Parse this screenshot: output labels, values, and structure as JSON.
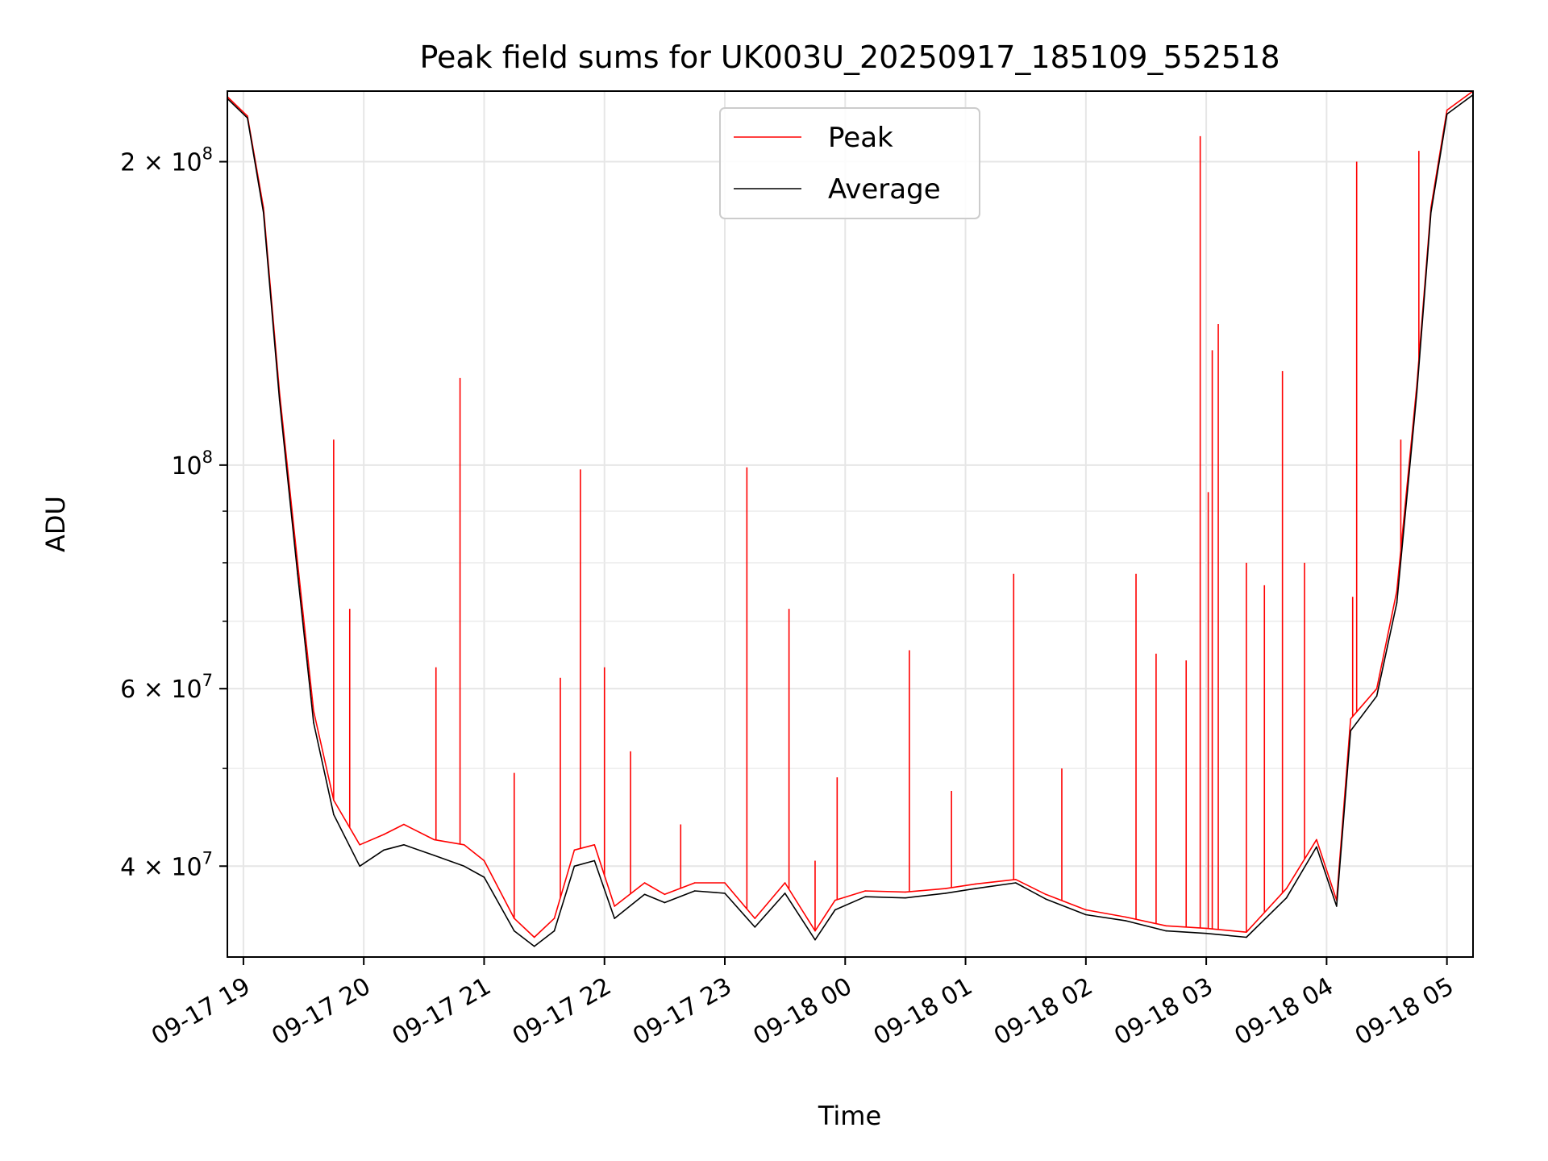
{
  "chart_data": {
    "type": "line",
    "title": "Peak field sums for UK003U_20250917_185109_552518",
    "xlabel": "Time",
    "ylabel": "ADU",
    "y_scale": "log",
    "ylim": [
      32500000,
      235000000
    ],
    "xlim": [
      "09-17 18:52",
      "09-18 05:13"
    ],
    "grid": true,
    "legend_position": "top-center",
    "x_ticks": [
      {
        "t": "09-17 19:00",
        "label": "09-17 19"
      },
      {
        "t": "09-17 20:00",
        "label": "09-17 20"
      },
      {
        "t": "09-17 21:00",
        "label": "09-17 21"
      },
      {
        "t": "09-17 22:00",
        "label": "09-17 22"
      },
      {
        "t": "09-17 23:00",
        "label": "09-17 23"
      },
      {
        "t": "09-18 00:00",
        "label": "09-18 00"
      },
      {
        "t": "09-18 01:00",
        "label": "09-18 01"
      },
      {
        "t": "09-18 02:00",
        "label": "09-18 02"
      },
      {
        "t": "09-18 03:00",
        "label": "09-18 03"
      },
      {
        "t": "09-18 04:00",
        "label": "09-18 04"
      },
      {
        "t": "09-18 05:00",
        "label": "09-18 05"
      }
    ],
    "y_ticks": [
      {
        "value": 40000000,
        "base": "4",
        "exp": "7"
      },
      {
        "value": 60000000,
        "base": "6",
        "exp": "7"
      },
      {
        "value": 100000000,
        "base": "",
        "exp": "8"
      },
      {
        "value": 200000000,
        "base": "2",
        "exp": "8"
      }
    ],
    "y_minor_ticks": [
      50000000,
      70000000,
      80000000,
      90000000
    ],
    "series": [
      {
        "name": "Peak",
        "color": "#ff0000",
        "points": [
          [
            "09-17 18:52",
            232000000
          ],
          [
            "09-17 19:02",
            222000000
          ],
          [
            "09-17 19:10",
            180000000
          ],
          [
            "09-17 19:18",
            118000000
          ],
          [
            "09-17 19:27",
            80000000
          ],
          [
            "09-17 19:35",
            57000000
          ],
          [
            "09-17 19:45",
            46500000
          ],
          [
            "09-17 19:58",
            42000000
          ],
          [
            "09-17 20:10",
            43000000
          ],
          [
            "09-17 20:20",
            44000000
          ],
          [
            "09-17 20:35",
            42500000
          ],
          [
            "09-17 20:50",
            42000000
          ],
          [
            "09-17 21:00",
            40500000
          ],
          [
            "09-17 21:15",
            35500000
          ],
          [
            "09-17 21:25",
            34000000
          ],
          [
            "09-17 21:35",
            35500000
          ],
          [
            "09-17 21:45",
            41500000
          ],
          [
            "09-17 21:55",
            42000000
          ],
          [
            "09-17 22:05",
            36500000
          ],
          [
            "09-17 22:20",
            38500000
          ],
          [
            "09-17 22:30",
            37500000
          ],
          [
            "09-17 22:45",
            38500000
          ],
          [
            "09-17 23:00",
            38500000
          ],
          [
            "09-17 23:15",
            35500000
          ],
          [
            "09-17 23:30",
            38500000
          ],
          [
            "09-17 23:45",
            34500000
          ],
          [
            "09-17 23:55",
            37000000
          ],
          [
            "09-18 00:10",
            37800000
          ],
          [
            "09-18 00:30",
            37700000
          ],
          [
            "09-18 00:50",
            38000000
          ],
          [
            "09-18 01:05",
            38400000
          ],
          [
            "09-18 01:25",
            38800000
          ],
          [
            "09-18 01:40",
            37500000
          ],
          [
            "09-18 02:00",
            36200000
          ],
          [
            "09-18 02:20",
            35600000
          ],
          [
            "09-18 02:40",
            34900000
          ],
          [
            "09-18 03:00",
            34700000
          ],
          [
            "09-18 03:20",
            34400000
          ],
          [
            "09-18 03:40",
            38000000
          ],
          [
            "09-18 03:55",
            42500000
          ],
          [
            "09-18 04:05",
            37000000
          ],
          [
            "09-18 04:12",
            56000000
          ],
          [
            "09-18 04:25",
            60000000
          ],
          [
            "09-18 04:35",
            75000000
          ],
          [
            "09-18 04:45",
            120000000
          ],
          [
            "09-18 04:52",
            180000000
          ],
          [
            "09-18 05:00",
            225000000
          ],
          [
            "09-18 05:13",
            235000000
          ]
        ],
        "spikes": [
          [
            "09-17 19:45",
            106000000
          ],
          [
            "09-17 19:53",
            72000000
          ],
          [
            "09-17 20:36",
            63000000
          ],
          [
            "09-17 20:48",
            122000000
          ],
          [
            "09-17 21:15",
            49500000
          ],
          [
            "09-17 21:38",
            61500000
          ],
          [
            "09-17 21:48",
            99000000
          ],
          [
            "09-17 22:00",
            63000000
          ],
          [
            "09-17 22:13",
            52000000
          ],
          [
            "09-17 22:38",
            44000000
          ],
          [
            "09-17 23:11",
            99500000
          ],
          [
            "09-17 23:32",
            72000000
          ],
          [
            "09-17 23:45",
            40500000
          ],
          [
            "09-17 23:56",
            49000000
          ],
          [
            "09-18 00:32",
            65500000
          ],
          [
            "09-18 00:53",
            47500000
          ],
          [
            "09-18 01:24",
            78000000
          ],
          [
            "09-18 01:48",
            50000000
          ],
          [
            "09-18 02:25",
            78000000
          ],
          [
            "09-18 02:35",
            65000000
          ],
          [
            "09-18 02:50",
            64000000
          ],
          [
            "09-18 02:57",
            212000000
          ],
          [
            "09-18 03:01",
            94000000
          ],
          [
            "09-18 03:03",
            130000000
          ],
          [
            "09-18 03:06",
            138000000
          ],
          [
            "09-18 03:20",
            80000000
          ],
          [
            "09-18 03:29",
            76000000
          ],
          [
            "09-18 03:38",
            124000000
          ],
          [
            "09-18 03:49",
            80000000
          ],
          [
            "09-18 04:13",
            74000000
          ],
          [
            "09-18 04:15",
            200000000
          ],
          [
            "09-18 04:37",
            106000000
          ],
          [
            "09-18 04:46",
            205000000
          ]
        ]
      },
      {
        "name": "Average",
        "color": "#000000",
        "points": [
          [
            "09-17 18:52",
            231000000
          ],
          [
            "09-17 19:02",
            221000000
          ],
          [
            "09-17 19:10",
            178000000
          ],
          [
            "09-17 19:18",
            116000000
          ],
          [
            "09-17 19:27",
            78000000
          ],
          [
            "09-17 19:35",
            55500000
          ],
          [
            "09-17 19:45",
            45000000
          ],
          [
            "09-17 19:58",
            40000000
          ],
          [
            "09-17 20:10",
            41500000
          ],
          [
            "09-17 20:20",
            42000000
          ],
          [
            "09-17 20:35",
            41000000
          ],
          [
            "09-17 20:50",
            40000000
          ],
          [
            "09-17 21:00",
            39000000
          ],
          [
            "09-17 21:15",
            34500000
          ],
          [
            "09-17 21:25",
            33300000
          ],
          [
            "09-17 21:35",
            34500000
          ],
          [
            "09-17 21:45",
            40000000
          ],
          [
            "09-17 21:55",
            40500000
          ],
          [
            "09-17 22:05",
            35500000
          ],
          [
            "09-17 22:20",
            37500000
          ],
          [
            "09-17 22:30",
            36800000
          ],
          [
            "09-17 22:45",
            37800000
          ],
          [
            "09-17 23:00",
            37600000
          ],
          [
            "09-17 23:15",
            34800000
          ],
          [
            "09-17 23:30",
            37600000
          ],
          [
            "09-17 23:45",
            33800000
          ],
          [
            "09-17 23:55",
            36200000
          ],
          [
            "09-18 00:10",
            37300000
          ],
          [
            "09-18 00:30",
            37200000
          ],
          [
            "09-18 00:50",
            37600000
          ],
          [
            "09-18 01:05",
            38000000
          ],
          [
            "09-18 01:25",
            38500000
          ],
          [
            "09-18 01:40",
            37100000
          ],
          [
            "09-18 02:00",
            35800000
          ],
          [
            "09-18 02:20",
            35300000
          ],
          [
            "09-18 02:40",
            34500000
          ],
          [
            "09-18 03:00",
            34300000
          ],
          [
            "09-18 03:20",
            34000000
          ],
          [
            "09-18 03:40",
            37200000
          ],
          [
            "09-18 03:55",
            41800000
          ],
          [
            "09-18 04:05",
            36500000
          ],
          [
            "09-18 04:12",
            54500000
          ],
          [
            "09-18 04:25",
            59000000
          ],
          [
            "09-18 04:35",
            73000000
          ],
          [
            "09-18 04:45",
            118000000
          ],
          [
            "09-18 04:52",
            178000000
          ],
          [
            "09-18 05:00",
            223000000
          ],
          [
            "09-18 05:13",
            233000000
          ]
        ]
      }
    ]
  }
}
